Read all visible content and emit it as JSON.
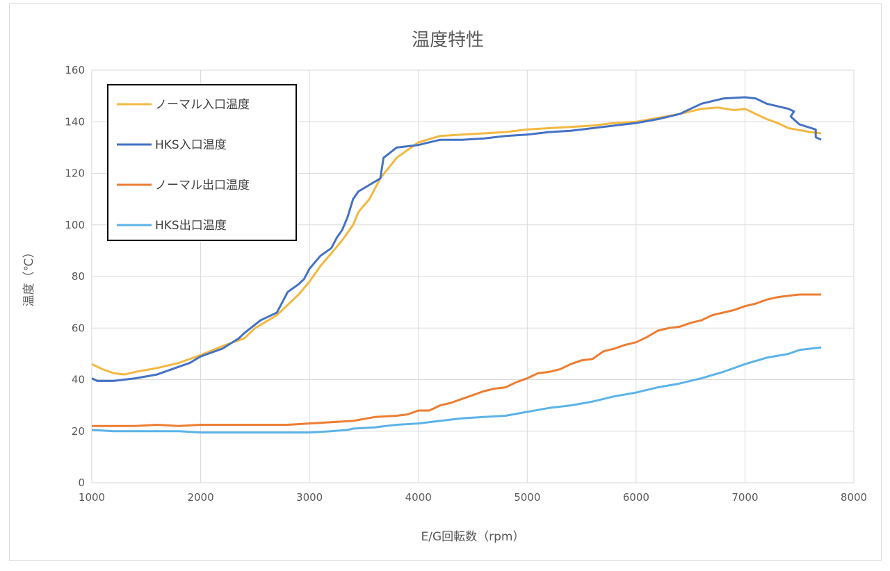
{
  "chart_data": {
    "type": "line",
    "title": "温度特性",
    "xlabel": "E/G回転数（rpm）",
    "ylabel": "温度（℃）",
    "xlim": [
      1000,
      8000
    ],
    "ylim": [
      0,
      160
    ],
    "xticks": [
      1000,
      2000,
      3000,
      4000,
      5000,
      6000,
      7000,
      8000
    ],
    "yticks": [
      0,
      20,
      40,
      60,
      80,
      100,
      120,
      140,
      160
    ],
    "grid": true,
    "legend_position": "top-left",
    "series": [
      {
        "name": "ノーマル入口温度",
        "color": "#f2b840",
        "points": [
          [
            1000,
            46
          ],
          [
            1100,
            44
          ],
          [
            1200,
            42.5
          ],
          [
            1300,
            42
          ],
          [
            1400,
            43
          ],
          [
            1600,
            44.5
          ],
          [
            1800,
            46.5
          ],
          [
            2000,
            49.5
          ],
          [
            2200,
            53
          ],
          [
            2400,
            56
          ],
          [
            2500,
            60
          ],
          [
            2700,
            65
          ],
          [
            2900,
            73
          ],
          [
            3000,
            78
          ],
          [
            3100,
            84
          ],
          [
            3200,
            89
          ],
          [
            3300,
            94
          ],
          [
            3400,
            100
          ],
          [
            3450,
            105
          ],
          [
            3550,
            110
          ],
          [
            3650,
            118
          ],
          [
            3800,
            126
          ],
          [
            4000,
            132
          ],
          [
            4200,
            134.5
          ],
          [
            4400,
            135
          ],
          [
            4600,
            135.5
          ],
          [
            4800,
            136
          ],
          [
            5000,
            137
          ],
          [
            5200,
            137.5
          ],
          [
            5400,
            138
          ],
          [
            5600,
            138.5
          ],
          [
            5800,
            139.5
          ],
          [
            6000,
            140
          ],
          [
            6200,
            141.5
          ],
          [
            6400,
            143
          ],
          [
            6600,
            145
          ],
          [
            6750,
            145.5
          ],
          [
            6900,
            144.5
          ],
          [
            7000,
            145
          ],
          [
            7200,
            141
          ],
          [
            7300,
            139.5
          ],
          [
            7400,
            137.5
          ],
          [
            7600,
            136
          ],
          [
            7700,
            135.5
          ]
        ]
      },
      {
        "name": "HKS入口温度",
        "color": "#4472c4",
        "points": [
          [
            1000,
            40.5
          ],
          [
            1050,
            39.5
          ],
          [
            1200,
            39.5
          ],
          [
            1400,
            40.5
          ],
          [
            1600,
            42
          ],
          [
            1800,
            45
          ],
          [
            1900,
            46.5
          ],
          [
            2000,
            49
          ],
          [
            2200,
            52
          ],
          [
            2350,
            56
          ],
          [
            2400,
            58
          ],
          [
            2550,
            63
          ],
          [
            2700,
            66
          ],
          [
            2800,
            74
          ],
          [
            2900,
            77
          ],
          [
            2950,
            79
          ],
          [
            3000,
            83
          ],
          [
            3100,
            88
          ],
          [
            3200,
            91
          ],
          [
            3250,
            95
          ],
          [
            3300,
            98
          ],
          [
            3350,
            103
          ],
          [
            3400,
            110
          ],
          [
            3450,
            113
          ],
          [
            3650,
            118
          ],
          [
            3680,
            126
          ],
          [
            3800,
            130
          ],
          [
            4000,
            131
          ],
          [
            4200,
            133
          ],
          [
            4400,
            133
          ],
          [
            4600,
            133.5
          ],
          [
            4800,
            134.5
          ],
          [
            5000,
            135
          ],
          [
            5200,
            136
          ],
          [
            5400,
            136.5
          ],
          [
            5600,
            137.5
          ],
          [
            5800,
            138.5
          ],
          [
            6000,
            139.5
          ],
          [
            6200,
            141
          ],
          [
            6400,
            143
          ],
          [
            6500,
            145
          ],
          [
            6600,
            147
          ],
          [
            6800,
            149
          ],
          [
            7000,
            149.5
          ],
          [
            7100,
            149
          ],
          [
            7200,
            147
          ],
          [
            7400,
            145
          ],
          [
            7450,
            144
          ],
          [
            7420,
            142
          ],
          [
            7500,
            139
          ],
          [
            7650,
            137
          ],
          [
            7650,
            134
          ],
          [
            7700,
            133
          ]
        ]
      },
      {
        "name": "ノーマル出口温度",
        "color": "#ed7d31",
        "points": [
          [
            1000,
            22
          ],
          [
            1200,
            22
          ],
          [
            1400,
            22
          ],
          [
            1600,
            22.5
          ],
          [
            1800,
            22
          ],
          [
            2000,
            22.5
          ],
          [
            2200,
            22.5
          ],
          [
            2400,
            22.5
          ],
          [
            2600,
            22.5
          ],
          [
            2800,
            22.5
          ],
          [
            3000,
            23
          ],
          [
            3200,
            23.5
          ],
          [
            3400,
            24
          ],
          [
            3600,
            25.5
          ],
          [
            3800,
            26
          ],
          [
            3900,
            26.5
          ],
          [
            4000,
            28
          ],
          [
            4100,
            28
          ],
          [
            4200,
            30
          ],
          [
            4300,
            31
          ],
          [
            4400,
            32.5
          ],
          [
            4500,
            34
          ],
          [
            4600,
            35.5
          ],
          [
            4700,
            36.5
          ],
          [
            4800,
            37
          ],
          [
            4900,
            39
          ],
          [
            5000,
            40.5
          ],
          [
            5100,
            42.5
          ],
          [
            5200,
            43
          ],
          [
            5300,
            44
          ],
          [
            5400,
            46
          ],
          [
            5500,
            47.5
          ],
          [
            5600,
            48
          ],
          [
            5700,
            51
          ],
          [
            5800,
            52
          ],
          [
            5900,
            53.5
          ],
          [
            6000,
            54.5
          ],
          [
            6100,
            56.5
          ],
          [
            6200,
            59
          ],
          [
            6300,
            60
          ],
          [
            6400,
            60.5
          ],
          [
            6500,
            62
          ],
          [
            6600,
            63
          ],
          [
            6700,
            65
          ],
          [
            6800,
            66
          ],
          [
            6900,
            67
          ],
          [
            7000,
            68.5
          ],
          [
            7100,
            69.5
          ],
          [
            7200,
            71
          ],
          [
            7300,
            72
          ],
          [
            7400,
            72.5
          ],
          [
            7500,
            73
          ],
          [
            7700,
            73
          ]
        ]
      },
      {
        "name": "HKS出口温度",
        "color": "#5bb3e8",
        "points": [
          [
            1000,
            20.5
          ],
          [
            1200,
            20
          ],
          [
            1400,
            20
          ],
          [
            1600,
            20
          ],
          [
            1800,
            20
          ],
          [
            2000,
            19.5
          ],
          [
            2200,
            19.5
          ],
          [
            2400,
            19.5
          ],
          [
            2600,
            19.5
          ],
          [
            2800,
            19.5
          ],
          [
            3000,
            19.5
          ],
          [
            3200,
            20
          ],
          [
            3350,
            20.5
          ],
          [
            3400,
            21
          ],
          [
            3600,
            21.5
          ],
          [
            3700,
            22
          ],
          [
            3800,
            22.5
          ],
          [
            4000,
            23
          ],
          [
            4200,
            24
          ],
          [
            4400,
            25
          ],
          [
            4600,
            25.5
          ],
          [
            4800,
            26
          ],
          [
            5000,
            27.5
          ],
          [
            5200,
            29
          ],
          [
            5400,
            30
          ],
          [
            5600,
            31.5
          ],
          [
            5800,
            33.5
          ],
          [
            6000,
            35
          ],
          [
            6200,
            37
          ],
          [
            6400,
            38.5
          ],
          [
            6600,
            40.5
          ],
          [
            6800,
            43
          ],
          [
            7000,
            46
          ],
          [
            7200,
            48.5
          ],
          [
            7400,
            50
          ],
          [
            7500,
            51.5
          ],
          [
            7700,
            52.5
          ]
        ]
      }
    ]
  }
}
